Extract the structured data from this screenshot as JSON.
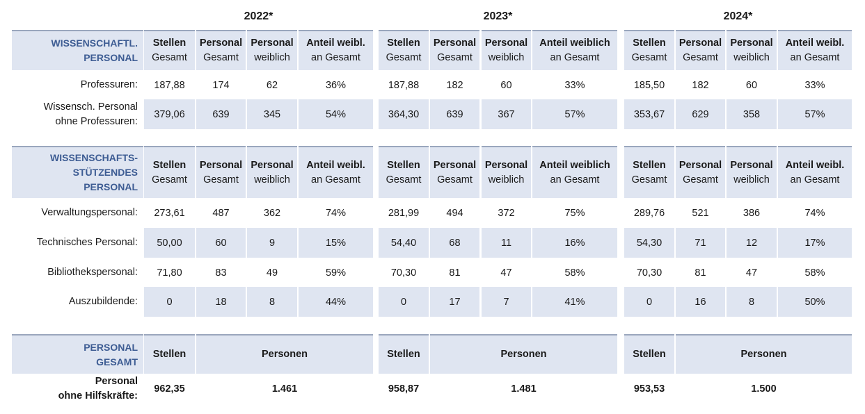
{
  "years": [
    "2022*",
    "2023*",
    "2024*"
  ],
  "header_detail": [
    {
      "stellen": [
        "Stellen",
        "Gesamt"
      ],
      "pers_ges": [
        "Personal",
        "Gesamt"
      ],
      "pers_w": [
        "Personal",
        "weiblich"
      ],
      "anteil": [
        "Anteil weibl.",
        "an Gesamt"
      ]
    },
    {
      "stellen": [
        "Stellen",
        "Gesamt"
      ],
      "pers_ges": [
        "Personal",
        "Gesamt"
      ],
      "pers_w": [
        "Personal",
        "weiblich"
      ],
      "anteil": [
        "Anteil weiblich",
        "an Gesamt"
      ]
    },
    {
      "stellen": [
        "Stellen",
        "Gesamt"
      ],
      "pers_ges": [
        "Personal",
        "Gesamt"
      ],
      "pers_w": [
        "Personal",
        "weiblich"
      ],
      "anteil": [
        "Anteil weibl.",
        "an Gesamt"
      ]
    }
  ],
  "section1": {
    "label": [
      "WISSENSCHAFTL.",
      "PERSONAL"
    ],
    "rows": [
      {
        "label": [
          "Professuren:"
        ],
        "values": [
          [
            "187,88",
            "174",
            "62",
            "36%"
          ],
          [
            "187,88",
            "182",
            "60",
            "33%"
          ],
          [
            "185,50",
            "182",
            "60",
            "33%"
          ]
        ]
      },
      {
        "label": [
          "Wissensch. Personal",
          "ohne Professuren:"
        ],
        "values": [
          [
            "379,06",
            "639",
            "345",
            "54%"
          ],
          [
            "364,30",
            "639",
            "367",
            "57%"
          ],
          [
            "353,67",
            "629",
            "358",
            "57%"
          ]
        ]
      }
    ]
  },
  "section2": {
    "label": [
      "WISSENSCHAFTS-",
      "STÜTZENDES",
      "PERSONAL"
    ],
    "rows": [
      {
        "label": [
          "Verwaltungspersonal:"
        ],
        "values": [
          [
            "273,61",
            "487",
            "362",
            "74%"
          ],
          [
            "281,99",
            "494",
            "372",
            "75%"
          ],
          [
            "289,76",
            "521",
            "386",
            "74%"
          ]
        ]
      },
      {
        "label": [
          "Technisches Personal:"
        ],
        "values": [
          [
            "50,00",
            "60",
            "9",
            "15%"
          ],
          [
            "54,40",
            "68",
            "11",
            "16%"
          ],
          [
            "54,30",
            "71",
            "12",
            "17%"
          ]
        ]
      },
      {
        "label": [
          "Bibliothekspersonal:"
        ],
        "values": [
          [
            "71,80",
            "83",
            "49",
            "59%"
          ],
          [
            "70,30",
            "81",
            "47",
            "58%"
          ],
          [
            "70,30",
            "81",
            "47",
            "58%"
          ]
        ]
      },
      {
        "label": [
          "Auszubildende:"
        ],
        "values": [
          [
            "0",
            "18",
            "8",
            "44%"
          ],
          [
            "0",
            "17",
            "7",
            "41%"
          ],
          [
            "0",
            "16",
            "8",
            "50%"
          ]
        ]
      }
    ]
  },
  "section3": {
    "label": [
      "PERSONAL",
      "GESAMT"
    ],
    "header": {
      "stellen": "Stellen",
      "personen": "Personen"
    },
    "row_label": [
      "Personal",
      "ohne Hilfskräfte:"
    ],
    "values": [
      [
        "962,35",
        "1.461"
      ],
      [
        "958,87",
        "1.481"
      ],
      [
        "953,53",
        "1.500"
      ]
    ]
  }
}
